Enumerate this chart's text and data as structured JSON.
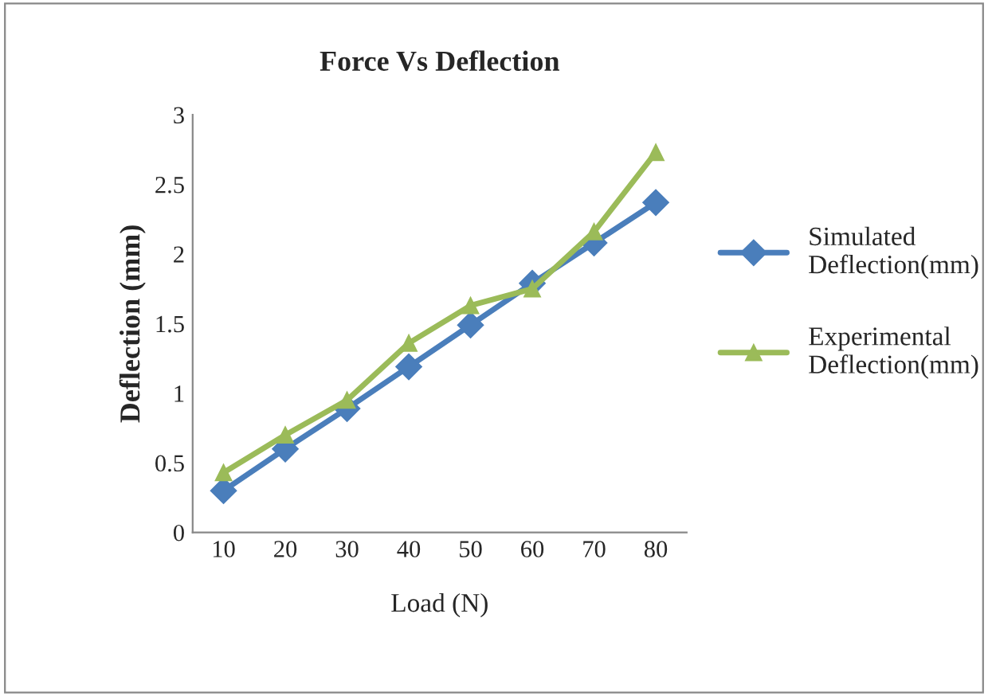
{
  "chart_data": {
    "type": "line",
    "title": "Force Vs Deflection",
    "xlabel": "Load (N)",
    "ylabel": "Deflection (mm)",
    "categories": [
      "10",
      "20",
      "30",
      "40",
      "50",
      "60",
      "70",
      "80"
    ],
    "series": [
      {
        "name": "Simulated Deflection(mm)",
        "color": "#4a7ebb",
        "marker": "diamond",
        "values": [
          0.3,
          0.6,
          0.89,
          1.19,
          1.49,
          1.79,
          2.08,
          2.37
        ]
      },
      {
        "name": "Experimental Deflection(mm)",
        "color": "#9bbb59",
        "marker": "triangle",
        "values": [
          0.43,
          0.7,
          0.95,
          1.36,
          1.63,
          1.75,
          2.16,
          2.73
        ]
      }
    ],
    "ylim": [
      0,
      3
    ],
    "yticks": [
      0,
      0.5,
      1,
      1.5,
      2,
      2.5,
      3
    ],
    "grid": false,
    "legend": "right"
  }
}
